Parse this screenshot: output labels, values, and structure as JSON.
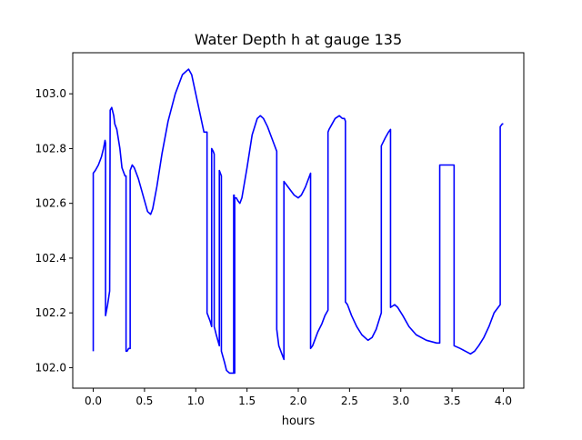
{
  "chart_data": {
    "type": "line",
    "title": "Water Depth h at gauge 135",
    "xlabel": "hours",
    "ylabel": "",
    "xlim": [
      -0.2,
      4.2
    ],
    "ylim": [
      101.925,
      103.15
    ],
    "xticks": [
      0.0,
      0.5,
      1.0,
      1.5,
      2.0,
      2.5,
      3.0,
      3.5,
      4.0
    ],
    "xtick_labels": [
      "0.0",
      "0.5",
      "1.0",
      "1.5",
      "2.0",
      "2.5",
      "3.0",
      "3.5",
      "4.0"
    ],
    "yticks": [
      102.0,
      102.2,
      102.4,
      102.6,
      102.8,
      103.0
    ],
    "ytick_labels": [
      "102.0",
      "102.2",
      "102.4",
      "102.6",
      "102.8",
      "103.0"
    ],
    "grid": false,
    "legend": "none",
    "series": [
      {
        "color": "#0000ff",
        "x": [
          0.0,
          0.0,
          0.02,
          0.05,
          0.08,
          0.1,
          0.115,
          0.12,
          0.12,
          0.14,
          0.16,
          0.165,
          0.165,
          0.18,
          0.2,
          0.21,
          0.23,
          0.26,
          0.28,
          0.3,
          0.31,
          0.32,
          0.32,
          0.33,
          0.345,
          0.36,
          0.36,
          0.38,
          0.4,
          0.44,
          0.5,
          0.53,
          0.56,
          0.58,
          0.62,
          0.67,
          0.73,
          0.8,
          0.87,
          0.93,
          0.96,
          1.0,
          1.04,
          1.08,
          1.11,
          1.11,
          1.14,
          1.155,
          1.155,
          1.17,
          1.18,
          1.18,
          1.2,
          1.23,
          1.23,
          1.25,
          1.25,
          1.28,
          1.3,
          1.33,
          1.35,
          1.37,
          1.37,
          1.375,
          1.375,
          1.38,
          1.38,
          1.395,
          1.41,
          1.43,
          1.45,
          1.5,
          1.55,
          1.6,
          1.63,
          1.66,
          1.7,
          1.73,
          1.76,
          1.79,
          1.79,
          1.81,
          1.84,
          1.86,
          1.86,
          1.88,
          1.92,
          1.96,
          2.0,
          2.03,
          2.07,
          2.12,
          2.12,
          2.14,
          2.16,
          2.19,
          2.23,
          2.26,
          2.29,
          2.29,
          2.3,
          2.33,
          2.36,
          2.4,
          2.43,
          2.45,
          2.46,
          2.46,
          2.48,
          2.52,
          2.57,
          2.62,
          2.68,
          2.72,
          2.76,
          2.81,
          2.81,
          2.85,
          2.88,
          2.9,
          2.9,
          2.94,
          2.97,
          3.02,
          3.08,
          3.15,
          3.25,
          3.35,
          3.38,
          3.38,
          3.44,
          3.52,
          3.52,
          3.58,
          3.63,
          3.68,
          3.72,
          3.76,
          3.81,
          3.86,
          3.91,
          3.95,
          3.97,
          3.97,
          3.99,
          4.0
        ],
        "y": [
          102.06,
          102.71,
          102.72,
          102.74,
          102.77,
          102.8,
          102.83,
          102.82,
          102.19,
          102.23,
          102.28,
          102.93,
          102.94,
          102.95,
          102.92,
          102.89,
          102.87,
          102.8,
          102.73,
          102.71,
          102.7,
          102.7,
          102.06,
          102.06,
          102.07,
          102.07,
          102.72,
          102.74,
          102.73,
          102.69,
          102.61,
          102.57,
          102.56,
          102.58,
          102.66,
          102.78,
          102.9,
          103.0,
          103.07,
          103.09,
          103.07,
          103.0,
          102.93,
          102.86,
          102.86,
          102.2,
          102.17,
          102.15,
          102.8,
          102.79,
          102.78,
          102.15,
          102.12,
          102.08,
          102.72,
          102.7,
          102.06,
          102.02,
          101.99,
          101.98,
          101.98,
          101.98,
          102.63,
          102.63,
          101.98,
          101.98,
          102.62,
          102.62,
          102.61,
          102.6,
          102.62,
          102.73,
          102.85,
          102.91,
          102.92,
          102.91,
          102.88,
          102.85,
          102.82,
          102.79,
          102.14,
          102.08,
          102.05,
          102.03,
          102.68,
          102.67,
          102.65,
          102.63,
          102.62,
          102.63,
          102.66,
          102.71,
          102.07,
          102.08,
          102.1,
          102.13,
          102.16,
          102.19,
          102.21,
          102.86,
          102.87,
          102.89,
          102.91,
          102.92,
          102.91,
          102.91,
          102.9,
          102.24,
          102.23,
          102.19,
          102.15,
          102.12,
          102.1,
          102.11,
          102.14,
          102.2,
          102.81,
          102.84,
          102.86,
          102.87,
          102.22,
          102.23,
          102.22,
          102.19,
          102.15,
          102.12,
          102.1,
          102.09,
          102.09,
          102.74,
          102.74,
          102.74,
          102.08,
          102.07,
          102.06,
          102.05,
          102.06,
          102.08,
          102.11,
          102.15,
          102.2,
          102.22,
          102.23,
          102.88,
          102.89,
          102.89
        ]
      }
    ]
  }
}
